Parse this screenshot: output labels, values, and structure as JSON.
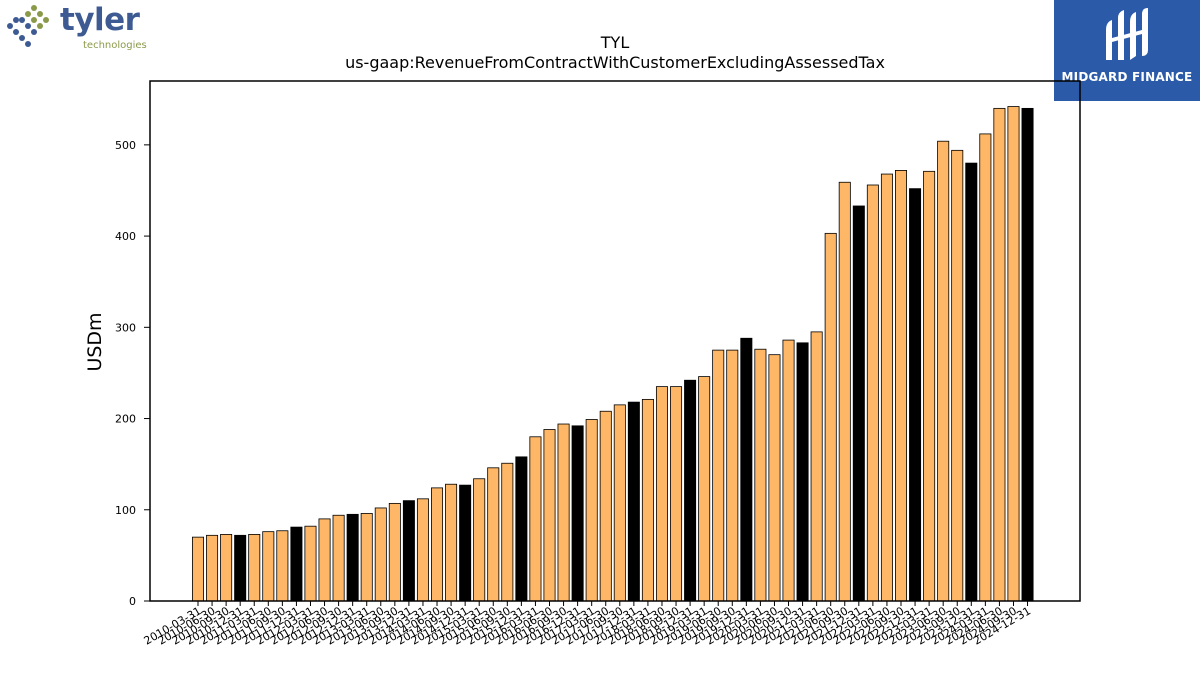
{
  "logos": {
    "left": {
      "word": "tyler",
      "sub": "technologies"
    },
    "right": {
      "brand": "MIDGARD FINANCE"
    }
  },
  "chart_data": {
    "type": "bar",
    "title": "TYL",
    "subtitle": "us-gaap:RevenueFromContractWithCustomerExcludingAssessedTax",
    "xlabel": "",
    "ylabel": "USDm",
    "ylim": [
      0,
      570
    ],
    "yticks": [
      0,
      100,
      200,
      300,
      400,
      500
    ],
    "grid": false,
    "colors": {
      "quarter": "#fdb766",
      "annual": "#000000",
      "edge": "#000000"
    },
    "categories": [
      "2010-03-31",
      "2010-06-30",
      "2010-09-30",
      "2010-12-31",
      "2011-03-31",
      "2011-06-30",
      "2011-09-30",
      "2011-12-31",
      "2012-03-31",
      "2012-06-30",
      "2012-09-30",
      "2012-12-31",
      "2013-03-31",
      "2013-06-30",
      "2013-09-30",
      "2013-12-31",
      "2014-03-31",
      "2014-06-30",
      "2014-09-30",
      "2014-12-31",
      "2015-03-31",
      "2015-06-30",
      "2015-09-30",
      "2015-12-31",
      "2016-03-31",
      "2016-06-30",
      "2016-09-30",
      "2016-12-31",
      "2017-03-31",
      "2017-06-30",
      "2017-09-30",
      "2017-12-31",
      "2018-03-31",
      "2018-06-30",
      "2018-09-30",
      "2018-12-31",
      "2019-03-31",
      "2019-06-30",
      "2019-09-30",
      "2019-12-31",
      "2020-03-31",
      "2020-06-30",
      "2020-09-30",
      "2020-12-31",
      "2021-03-31",
      "2021-06-30",
      "2021-09-30",
      "2021-12-31",
      "2022-03-31",
      "2022-06-30",
      "2022-09-30",
      "2022-12-31",
      "2023-03-31",
      "2023-06-30",
      "2023-09-30",
      "2023-12-31",
      "2024-03-31",
      "2024-06-30",
      "2024-09-30",
      "2024-12-31"
    ],
    "values": [
      70,
      72,
      73,
      72,
      73,
      76,
      77,
      81,
      82,
      90,
      94,
      95,
      96,
      102,
      107,
      110,
      112,
      124,
      128,
      127,
      134,
      146,
      151,
      158,
      180,
      188,
      194,
      192,
      199,
      208,
      215,
      218,
      221,
      235,
      235,
      242,
      246,
      275,
      275,
      288,
      276,
      270,
      286,
      283,
      295,
      403,
      459,
      433,
      456,
      468,
      472,
      452,
      471,
      504,
      494,
      480,
      512,
      540,
      542,
      540
    ],
    "annual": [
      false,
      false,
      false,
      true,
      false,
      false,
      false,
      true,
      false,
      false,
      false,
      true,
      false,
      false,
      false,
      true,
      false,
      false,
      false,
      true,
      false,
      false,
      false,
      true,
      false,
      false,
      false,
      true,
      false,
      false,
      false,
      true,
      false,
      false,
      false,
      true,
      false,
      false,
      false,
      true,
      false,
      false,
      false,
      true,
      false,
      false,
      false,
      true,
      false,
      false,
      false,
      true,
      false,
      false,
      false,
      true,
      false,
      false,
      false,
      true
    ]
  }
}
